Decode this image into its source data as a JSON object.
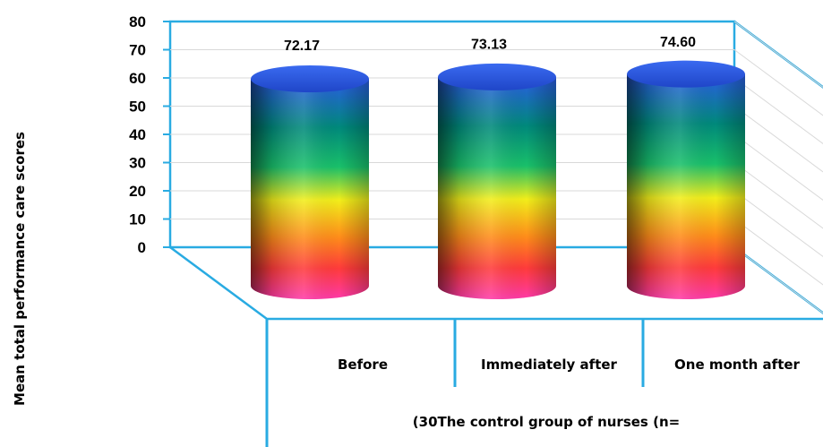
{
  "chart_data": {
    "type": "bar",
    "categories": [
      "Before",
      "Immediately after",
      "One month after"
    ],
    "values": [
      72.17,
      73.13,
      74.6
    ],
    "value_labels": [
      "72.17",
      "73.13",
      "74.60"
    ],
    "ylabel": "Mean total performance care scores",
    "xlabel": "(30The control group of nurses (n=",
    "ylim": [
      0,
      80
    ],
    "yticks": [
      0,
      10,
      20,
      30,
      40,
      50,
      60,
      70,
      80
    ],
    "grid": true,
    "legend": "none",
    "style": "3d-cylinder",
    "colors": {
      "wall_border": "#29abe2",
      "gridline": "#d9d9d9",
      "gradient": [
        "#2b5ce6",
        "#00897b",
        "#19c06a",
        "#f2ee1a",
        "#ff8c1a",
        "#ff3b3b",
        "#ff3aa8"
      ]
    }
  }
}
